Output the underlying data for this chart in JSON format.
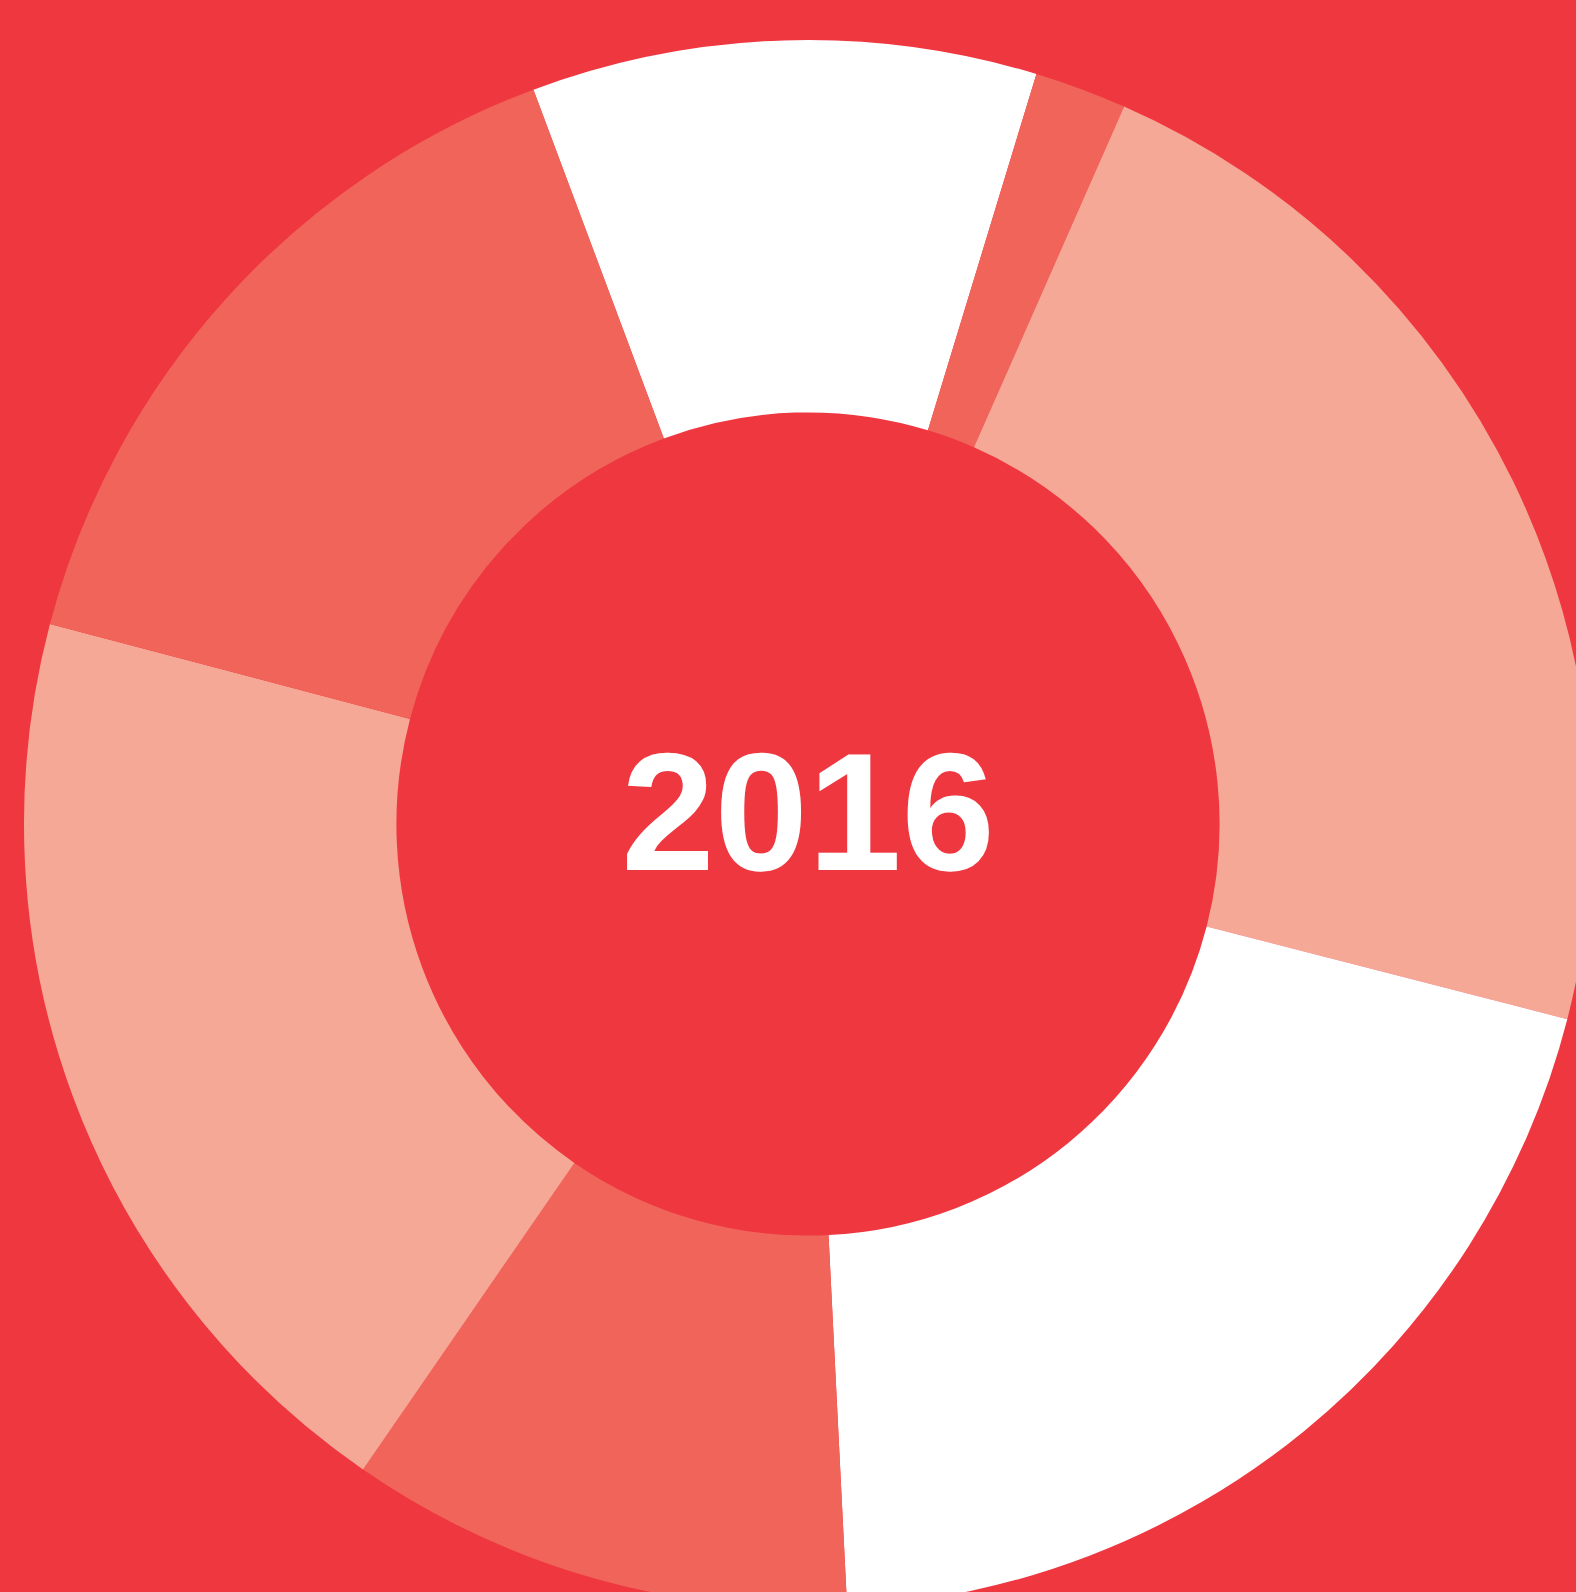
{
  "chart_data": {
    "type": "donut",
    "title": "2016",
    "categories": [
      null,
      null,
      null,
      null,
      null,
      null,
      null
    ],
    "values": [
      10.4,
      1.9,
      22.4,
      20.2,
      10.4,
      19.5,
      15.2
    ],
    "colors": [
      "#ffffff",
      "#f0645a",
      "#f6a897",
      "#ffffff",
      "#f0645a",
      "#f6a897",
      "#f0645a"
    ],
    "legend": false
  }
}
